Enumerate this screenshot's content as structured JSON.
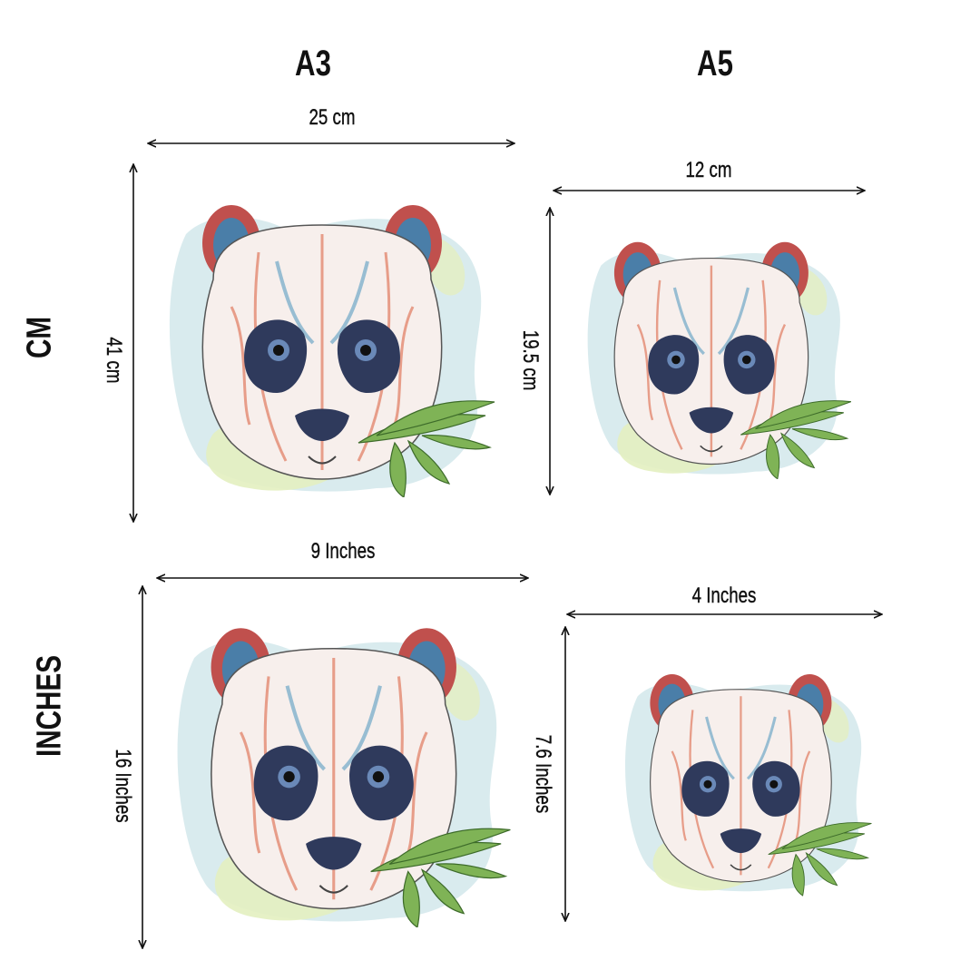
{
  "columns": {
    "a3": "A3",
    "a5": "A5"
  },
  "rows": {
    "cm": "CM",
    "inches": "INCHES"
  },
  "dimensions": {
    "cm_a3": {
      "width": "25 cm",
      "height": "41 cm"
    },
    "cm_a5": {
      "width": "12 cm",
      "height": "19.5 cm"
    },
    "in_a3": {
      "width": "9  Inches",
      "height": "16  Inches"
    },
    "in_a5": {
      "width": "4  Inches",
      "height": "7.6  Inches"
    }
  },
  "colors": {
    "text": "#111111",
    "arrow": "#111111",
    "watercolor_blue": "#bfe0e6",
    "watercolor_green": "#e3efc0",
    "leaf_green": "#6aa84f",
    "eye_patch": "#2f3a5c",
    "ear": "#c0504d"
  }
}
